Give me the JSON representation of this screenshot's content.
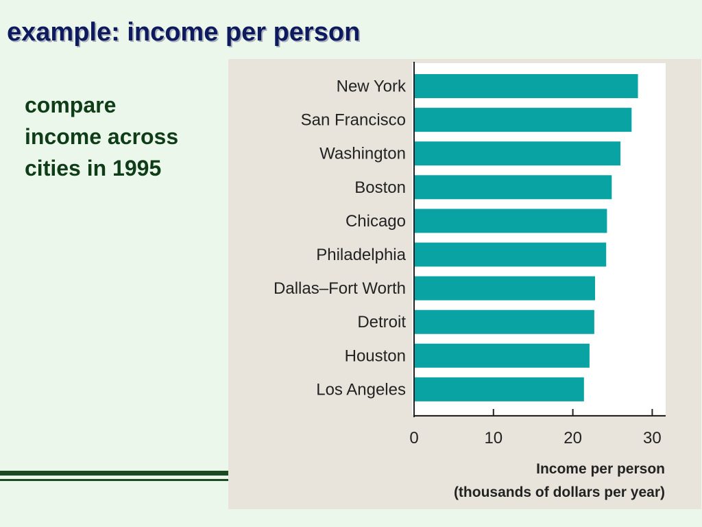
{
  "slide": {
    "title": "example: income per person",
    "body_lines": [
      "compare",
      "income across",
      "cities in 1995"
    ]
  },
  "colors": {
    "background": "#ecf7ec",
    "title": "#0d1a5e",
    "body_text": "#0f3d18",
    "bar": "#0aa3a3",
    "figure_panel": "#e8e4dc",
    "plot_area": "#ffffff"
  },
  "chart_data": {
    "type": "bar",
    "orientation": "horizontal",
    "categories": [
      "New York",
      "San Francisco",
      "Washington",
      "Boston",
      "Chicago",
      "Philadelphia",
      "Dallas–Fort Worth",
      "Detroit",
      "Houston",
      "Los Angeles"
    ],
    "values": [
      28.2,
      27.4,
      26.0,
      24.9,
      24.3,
      24.2,
      22.8,
      22.7,
      22.1,
      21.4
    ],
    "xlabel_lines": [
      "Income per person",
      "(thousands of dollars per year)"
    ],
    "xlim": [
      0,
      32
    ],
    "ticks": [
      0,
      10,
      20,
      30
    ],
    "grid": false
  }
}
